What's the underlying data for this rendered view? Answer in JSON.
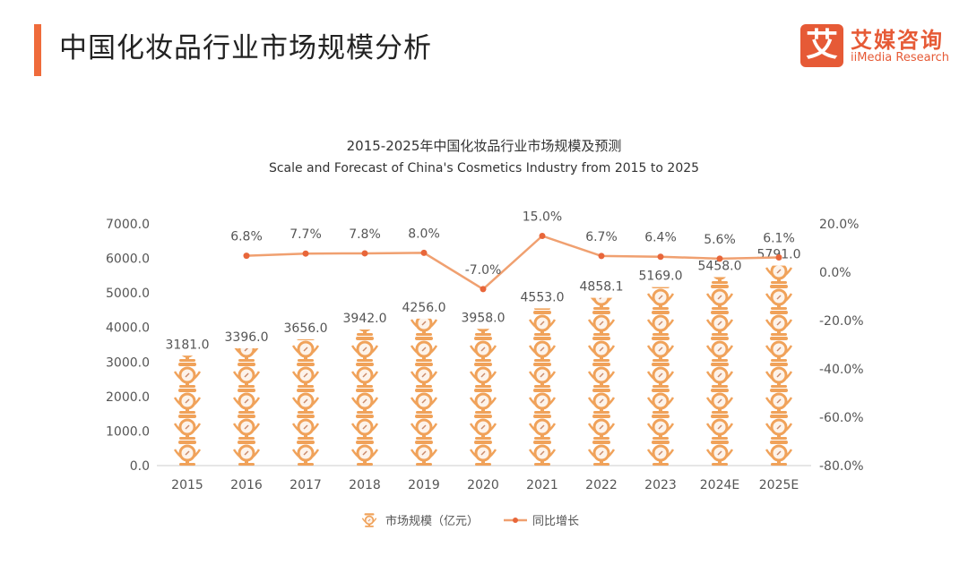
{
  "header": {
    "title": "中国化妆品行业市场规模分析"
  },
  "logo": {
    "mark": "艾",
    "name_cn": "艾媒咨询",
    "name_en": "iiMedia Research"
  },
  "chart_data": {
    "type": "bar+line",
    "title": "2015-2025年中国化妆品行业市场规模及预测",
    "subtitle": "Scale and Forecast of China's Cosmetics Industry from 2015 to 2025",
    "categories": [
      "2015",
      "2016",
      "2017",
      "2018",
      "2019",
      "2020",
      "2021",
      "2022",
      "2023",
      "2024E",
      "2025E"
    ],
    "series": [
      {
        "name": "市场规模（亿元）",
        "type": "pictogram-bar",
        "axis": "left",
        "values": [
          3181.0,
          3396.0,
          3656.0,
          3942.0,
          4256.0,
          3958.0,
          4553.0,
          4858.1,
          5169.0,
          5458.0,
          5791.0
        ],
        "labels": [
          "3181.0",
          "3396.0",
          "3656.0",
          "3942.0",
          "4256.0",
          "3958.0",
          "4553.0",
          "4858.1",
          "5169.0",
          "5458.0",
          "5791.0"
        ]
      },
      {
        "name": "同比增长",
        "type": "line",
        "axis": "right",
        "values": [
          null,
          6.8,
          7.7,
          7.8,
          8.0,
          -7.0,
          15.0,
          6.7,
          6.4,
          5.6,
          6.1
        ],
        "labels": [
          "",
          "6.8%",
          "7.7%",
          "7.8%",
          "8.0%",
          "-7.0%",
          "15.0%",
          "6.7%",
          "6.4%",
          "5.6%",
          "6.1%"
        ]
      }
    ],
    "left_axis": {
      "ylim": [
        0,
        7000
      ],
      "ticks": [
        "0.0",
        "1000.0",
        "2000.0",
        "3000.0",
        "4000.0",
        "5000.0",
        "6000.0",
        "7000.0"
      ]
    },
    "right_axis": {
      "ylim": [
        -80,
        20
      ],
      "ticks": [
        "-80.0%",
        "-60.0%",
        "-40.0%",
        "-20.0%",
        "0.0%",
        "20.0%"
      ]
    },
    "legend": "bottom",
    "grid": false,
    "colors": {
      "accent": "#ef6b3b",
      "bar": "#f0a25a",
      "line": "#f0a070",
      "point": "#e8663a"
    }
  }
}
